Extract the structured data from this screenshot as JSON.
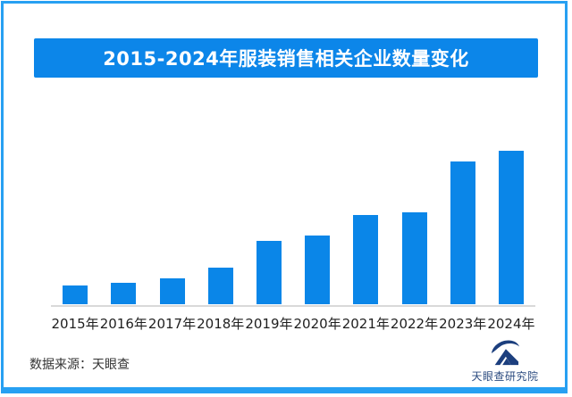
{
  "frame": {
    "border_color": "#27A0F2",
    "background": "#FFFFFF"
  },
  "title": {
    "text": "2015-2024年服装销售相关企业数量变化",
    "bg_color": "#0C86E9",
    "text_color": "#FFFFFF"
  },
  "chart_data": {
    "type": "bar",
    "title": "2015-2024年服装销售相关企业数量变化",
    "categories": [
      "2015年",
      "2016年",
      "2017年",
      "2018年",
      "2019年",
      "2020年",
      "2021年",
      "2022年",
      "2023年",
      "2024年"
    ],
    "values": [
      12,
      14,
      17,
      24,
      41,
      45,
      58,
      60,
      93,
      100
    ],
    "value_note": "no numeric axis shown in image; values are relative bar heights as percent of tallest bar (2024 = 100)",
    "xlabel": "",
    "ylabel": "",
    "grid": false,
    "legend": false,
    "bar_color": "#0A86E8",
    "axis_line_color": "#D9D9D9"
  },
  "footer": {
    "source_text": "数据来源：天眼查",
    "logo_text": "天眼查研究院",
    "logo_color": "#1C3F7E",
    "logo_text_color": "#2A4A7F"
  }
}
